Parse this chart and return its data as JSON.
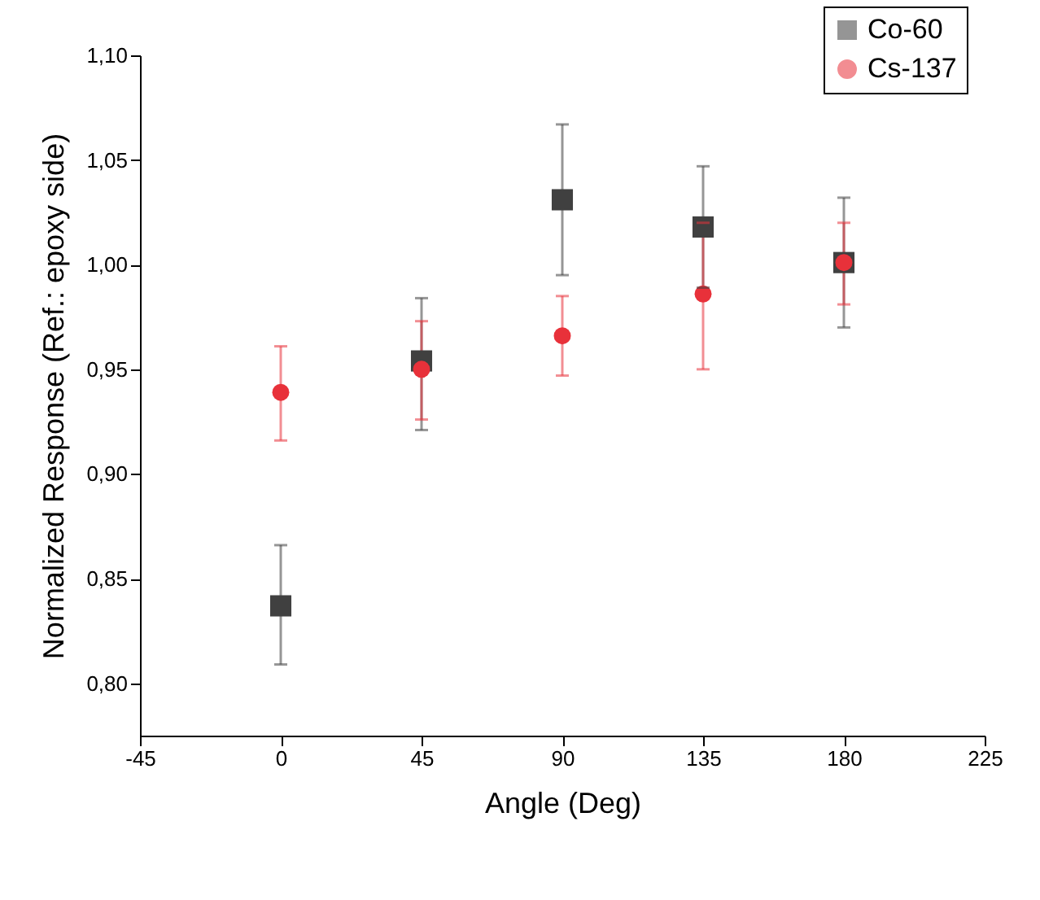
{
  "chart_data": {
    "type": "scatter",
    "xlabel": "Angle (Deg)",
    "ylabel": "Normalized Response (Ref.: epoxy side)",
    "x": [
      0,
      45,
      90,
      135,
      180
    ],
    "series": [
      {
        "name": "Co-60",
        "color": "#404040",
        "marker": "square",
        "values": [
          0.837,
          0.954,
          1.031,
          1.018,
          1.001
        ],
        "errors": [
          [
            0.809,
            0.866
          ],
          [
            0.921,
            0.984
          ],
          [
            0.995,
            1.067
          ],
          [
            0.989,
            1.047
          ],
          [
            0.97,
            1.032
          ]
        ]
      },
      {
        "name": "Cs-137",
        "color": "#e8313a",
        "marker": "circle",
        "values": [
          0.939,
          0.95,
          0.966,
          0.986,
          1.001
        ],
        "errors": [
          [
            0.916,
            0.961
          ],
          [
            0.926,
            0.973
          ],
          [
            0.947,
            0.985
          ],
          [
            0.95,
            1.02
          ],
          [
            0.981,
            1.02
          ]
        ]
      }
    ],
    "xlim": [
      -45,
      225
    ],
    "xticks": [
      -45,
      0,
      45,
      90,
      135,
      180,
      225
    ],
    "ylim": [
      0.775,
      1.1
    ],
    "yticks": [
      {
        "value": 0.8,
        "label": "0,80"
      },
      {
        "value": 0.85,
        "label": "0,85"
      },
      {
        "value": 0.9,
        "label": "0,90"
      },
      {
        "value": 0.95,
        "label": "0,95"
      },
      {
        "value": 1.0,
        "label": "1,00"
      },
      {
        "value": 1.05,
        "label": "1,05"
      },
      {
        "value": 1.1,
        "label": "1,10"
      }
    ],
    "grid": false,
    "legend": "top right"
  }
}
